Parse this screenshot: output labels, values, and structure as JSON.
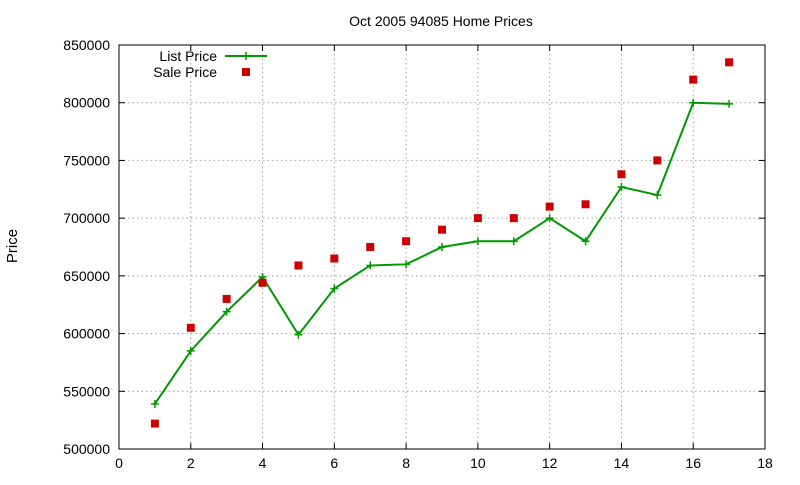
{
  "chart_data": {
    "type": "line",
    "title": "Oct 2005 94085 Home Prices",
    "xlabel": "",
    "ylabel": "Price",
    "xlim": [
      0,
      18
    ],
    "ylim": [
      500000,
      850000
    ],
    "x_ticks": [
      0,
      2,
      4,
      6,
      8,
      10,
      12,
      14,
      16,
      18
    ],
    "y_ticks": [
      500000,
      550000,
      600000,
      650000,
      700000,
      750000,
      800000,
      850000
    ],
    "grid": true,
    "legend_position": "top-left",
    "series": [
      {
        "name": "List Price",
        "style": "line+cross",
        "color": "#009900",
        "x": [
          1,
          2,
          3,
          4,
          5,
          6,
          7,
          8,
          9,
          10,
          11,
          12,
          13,
          14,
          15,
          16,
          17
        ],
        "values": [
          539000,
          585000,
          619000,
          649000,
          599000,
          639000,
          659000,
          660000,
          675000,
          680000,
          680000,
          700000,
          680000,
          727000,
          720000,
          800000,
          799000
        ]
      },
      {
        "name": "Sale Price",
        "style": "square",
        "color": "#cc0000",
        "x": [
          1,
          2,
          3,
          4,
          5,
          6,
          7,
          8,
          9,
          10,
          11,
          12,
          13,
          14,
          15,
          16,
          17
        ],
        "values": [
          522000,
          605000,
          630000,
          644000,
          659000,
          665000,
          675000,
          680000,
          690000,
          700000,
          700000,
          710000,
          712000,
          738000,
          750000,
          820000,
          835000
        ]
      }
    ]
  }
}
